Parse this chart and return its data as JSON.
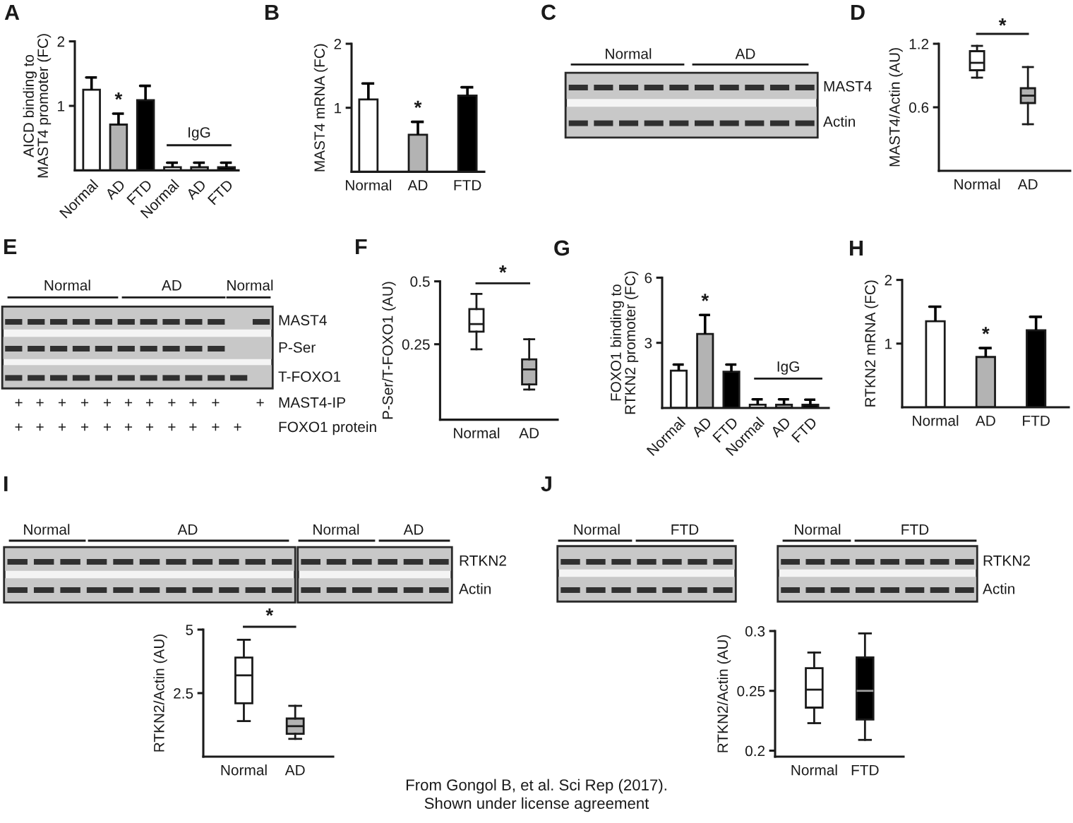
{
  "chart_data": [
    {
      "type": "bar",
      "title": "A",
      "ylabel": "AICD binding to\nMAST4 promoter (FC)",
      "categories": [
        "Normal",
        "AD",
        "FTD",
        "Normal",
        "AD",
        "FTD"
      ],
      "values": [
        1.25,
        0.71,
        1.09,
        0.05,
        0.05,
        0.05
      ],
      "colors": [
        "#ffffff",
        "#b3b3b3",
        "#000000",
        "#ffffff",
        "#b3b3b3",
        "#000000"
      ],
      "errors": [
        [
          1.25,
          1.44
        ],
        [
          0.71,
          0.88
        ],
        [
          1.09,
          1.31
        ],
        [
          0.05,
          0.12
        ],
        [
          0.05,
          0.12
        ],
        [
          0.05,
          0.12
        ]
      ],
      "ylim": [
        0,
        2
      ],
      "yticks": [
        1,
        2
      ],
      "annotations": [
        "*",
        "IgG"
      ]
    },
    {
      "type": "bar",
      "title": "B",
      "ylabel": "MAST4 mRNA (FC)",
      "categories": [
        "Normal",
        "AD",
        "FTD"
      ],
      "values": [
        1.13,
        0.58,
        1.19
      ],
      "colors": [
        "#ffffff",
        "#b3b3b3",
        "#000000"
      ],
      "errors": [
        [
          1.13,
          1.38
        ],
        [
          0.58,
          0.78
        ],
        [
          1.19,
          1.32
        ]
      ],
      "ylim": [
        0,
        2
      ],
      "yticks": [
        1,
        2
      ],
      "annotations": [
        "*"
      ]
    },
    {
      "type": "other",
      "title": "C",
      "annotations": [
        "Normal",
        "AD",
        "MAST4",
        "Actin"
      ]
    },
    {
      "type": "box",
      "title": "D",
      "ylabel": "MAST4/Actin (AU)",
      "categories": [
        "Normal",
        "AD"
      ],
      "boxes": [
        {
          "low": 0.88,
          "q1": 0.95,
          "median": 1.02,
          "q3": 1.13,
          "high": 1.18
        },
        {
          "low": 0.44,
          "q1": 0.64,
          "median": 0.71,
          "q3": 0.78,
          "high": 0.98
        }
      ],
      "colors": [
        "#ffffff",
        "#b3b3b3"
      ],
      "ylim": [
        0,
        1.2
      ],
      "yticks": [
        0.6,
        1.2
      ],
      "annotations": [
        "*"
      ]
    },
    {
      "type": "other",
      "title": "E",
      "annotations": [
        "Normal",
        "AD",
        "Normal",
        "MAST4",
        "P-Ser",
        "T-FOXO1",
        "+",
        "+",
        "+",
        "+",
        "+",
        "+",
        "+",
        "+",
        "+",
        "+",
        "+",
        "MAST4-IP",
        "+",
        "+",
        "+",
        "+",
        "+",
        "+",
        "+",
        "+",
        "+",
        "+",
        "+",
        "FOXO1 protein"
      ]
    },
    {
      "type": "box",
      "title": "F",
      "ylabel": "P-Ser/T-FOXO1 (AU)",
      "categories": [
        "Normal",
        "AD"
      ],
      "boxes": [
        {
          "low": 0.23,
          "q1": 0.3,
          "median": 0.33,
          "q3": 0.39,
          "high": 0.45
        },
        {
          "low": 0.07,
          "q1": 0.09,
          "median": 0.15,
          "q3": 0.19,
          "high": 0.27
        }
      ],
      "colors": [
        "#ffffff",
        "#b3b3b3"
      ],
      "ylim": [
        -0.05,
        0.5
      ],
      "yticks": [
        0.25,
        0.5
      ],
      "annotations": [
        "*"
      ]
    },
    {
      "type": "bar",
      "title": "G",
      "ylabel": "FOXO1 binding to\nRTKN2 promoter (FC)",
      "categories": [
        "Normal",
        "AD",
        "FTD",
        "Normal",
        "AD",
        "FTD"
      ],
      "values": [
        1.72,
        3.41,
        1.67,
        0.15,
        0.15,
        0.15
      ],
      "colors": [
        "#ffffff",
        "#b3b3b3",
        "#000000",
        "#ffffff",
        "#b3b3b3",
        "#000000"
      ],
      "errors": [
        [
          1.72,
          2.0
        ],
        [
          3.41,
          4.28
        ],
        [
          1.67,
          2.0
        ],
        [
          0.15,
          0.4
        ],
        [
          0.15,
          0.4
        ],
        [
          0.15,
          0.38
        ]
      ],
      "ylim": [
        0,
        6
      ],
      "yticks": [
        3,
        6
      ],
      "annotations": [
        "*",
        "IgG"
      ]
    },
    {
      "type": "bar",
      "title": "H",
      "ylabel": "RTKN2 mRNA (FC)",
      "categories": [
        "Normal",
        "AD",
        "FTD"
      ],
      "values": [
        1.35,
        0.79,
        1.21
      ],
      "colors": [
        "#ffffff",
        "#b3b3b3",
        "#000000"
      ],
      "errors": [
        [
          1.35,
          1.58
        ],
        [
          0.79,
          0.93
        ],
        [
          1.21,
          1.42
        ]
      ],
      "ylim": [
        0,
        2
      ],
      "yticks": [
        1,
        2
      ],
      "annotations": [
        "*"
      ]
    },
    {
      "type": "other",
      "title": "I",
      "annotations": [
        "Normal",
        "AD",
        "Normal",
        "AD",
        "RTKN2",
        "Actin"
      ]
    },
    {
      "type": "box",
      "ylabel": "RTKN2/Actin (AU)",
      "categories": [
        "Normal",
        "AD"
      ],
      "boxes": [
        {
          "low": 1.4,
          "q1": 2.1,
          "median": 3.2,
          "q3": 3.9,
          "high": 4.6
        },
        {
          "low": 0.7,
          "q1": 0.9,
          "median": 1.2,
          "q3": 1.5,
          "high": 2.0
        }
      ],
      "colors": [
        "#ffffff",
        "#b3b3b3"
      ],
      "ylim": [
        0,
        5
      ],
      "yticks": [
        2.5,
        5
      ],
      "annotations": [
        "*"
      ]
    },
    {
      "type": "other",
      "title": "J",
      "annotations": [
        "Normal",
        "FTD",
        "Normal",
        "FTD",
        "RTKN2",
        "Actin"
      ]
    },
    {
      "type": "box",
      "ylabel": "RTKN2/Actin (AU)",
      "categories": [
        "Normal",
        "FTD"
      ],
      "boxes": [
        {
          "low": 0.223,
          "q1": 0.236,
          "median": 0.251,
          "q3": 0.269,
          "high": 0.282
        },
        {
          "low": 0.209,
          "q1": 0.226,
          "median": 0.25,
          "q3": 0.278,
          "high": 0.298
        }
      ],
      "colors": [
        "#ffffff",
        "#000000"
      ],
      "ylim": [
        0.195,
        0.3
      ],
      "yticks": [
        0.2,
        0.25,
        0.3
      ]
    },
    {
      "type": "other",
      "annotations": [
        "From Gongol B, et al. Sci Rep (2017).",
        "Shown under license agreement"
      ]
    }
  ]
}
